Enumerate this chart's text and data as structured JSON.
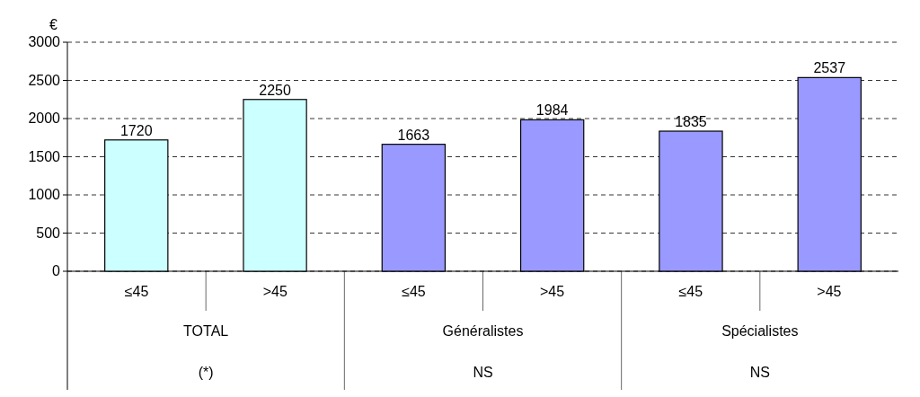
{
  "chart_data": {
    "type": "bar",
    "ylabel": "€",
    "categories": [
      "≤45",
      ">45",
      "≤45",
      ">45",
      "≤45",
      ">45"
    ],
    "values": [
      1720,
      2250,
      1663,
      1984,
      1835,
      2537
    ],
    "colors": [
      "#ccffff",
      "#ccffff",
      "#9999ff",
      "#9999ff",
      "#9999ff",
      "#9999ff"
    ],
    "ylim": [
      0,
      3000
    ],
    "yticks": [
      0,
      500,
      1000,
      1500,
      2000,
      2500,
      3000
    ],
    "grid": "y",
    "data_labels": true,
    "annotations": [
      "TOTAL",
      "(*)",
      "Généralistes",
      "NS",
      "Spécialistes",
      "NS"
    ]
  }
}
